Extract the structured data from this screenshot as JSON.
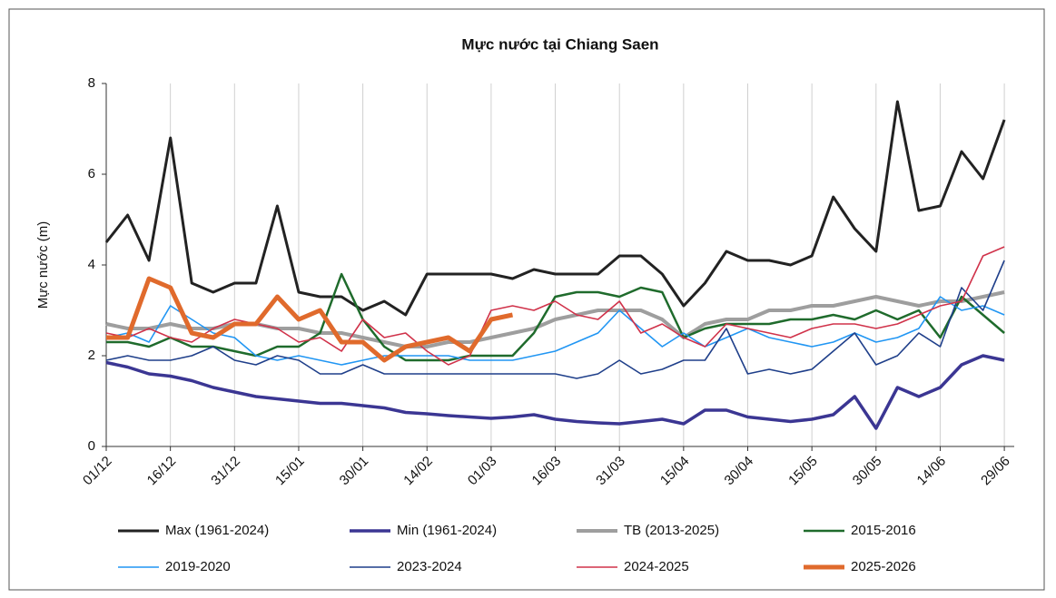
{
  "chart_data": {
    "type": "line",
    "title": "Mực nước tại Chiang Saen",
    "ylabel": "Mực nước (m)",
    "categories": [
      "01/12",
      null,
      null,
      "16/12",
      null,
      null,
      "31/12",
      null,
      null,
      "15/01",
      null,
      null,
      "30/01",
      null,
      null,
      "14/02",
      null,
      null,
      "01/03",
      null,
      null,
      "16/03",
      null,
      null,
      "31/03",
      null,
      null,
      "15/04",
      null,
      null,
      "30/04",
      null,
      null,
      "15/05",
      null,
      null,
      "30/05",
      null,
      null,
      "14/06",
      null,
      null,
      "29/06"
    ],
    "ylim": [
      0,
      8
    ],
    "yticks": [
      0,
      2,
      4,
      6,
      8
    ],
    "grid": true,
    "series": [
      {
        "name": "Max (1961-2024)",
        "color": "#222222",
        "values": [
          4.5,
          5.1,
          4.1,
          6.8,
          3.6,
          3.4,
          3.6,
          3.6,
          5.3,
          3.4,
          3.3,
          3.3,
          3.0,
          3.2,
          2.9,
          3.8,
          3.8,
          3.8,
          3.8,
          3.7,
          3.9,
          3.8,
          3.8,
          3.8,
          4.2,
          4.2,
          3.8,
          3.1,
          3.6,
          4.3,
          4.1,
          4.1,
          4.0,
          4.2,
          5.5,
          4.8,
          4.3,
          7.6,
          5.2,
          5.3,
          6.5,
          5.9,
          7.2
        ]
      },
      {
        "name": "Min (1961-2024)",
        "color": "#3b3693",
        "values": [
          1.85,
          1.75,
          1.6,
          1.55,
          1.45,
          1.3,
          1.2,
          1.1,
          1.05,
          1.0,
          0.95,
          0.95,
          0.9,
          0.85,
          0.75,
          0.72,
          0.68,
          0.65,
          0.62,
          0.65,
          0.7,
          0.6,
          0.55,
          0.52,
          0.5,
          0.55,
          0.6,
          0.5,
          0.8,
          0.8,
          0.65,
          0.6,
          0.55,
          0.6,
          0.7,
          1.1,
          0.4,
          1.3,
          1.1,
          1.3,
          1.8,
          2.0,
          1.9
        ]
      },
      {
        "name": "TB (2013-2025)",
        "color": "#9e9e9e",
        "values": [
          2.7,
          2.6,
          2.6,
          2.7,
          2.6,
          2.6,
          2.7,
          2.7,
          2.6,
          2.6,
          2.5,
          2.5,
          2.4,
          2.3,
          2.2,
          2.2,
          2.3,
          2.3,
          2.4,
          2.5,
          2.6,
          2.8,
          2.9,
          3.0,
          3.0,
          3.0,
          2.8,
          2.4,
          2.7,
          2.8,
          2.8,
          3.0,
          3.0,
          3.1,
          3.1,
          3.2,
          3.3,
          3.2,
          3.1,
          3.2,
          3.2,
          3.3,
          3.4
        ]
      },
      {
        "name": "2015-2016",
        "color": "#1f6b2c",
        "values": [
          2.3,
          2.3,
          2.2,
          2.4,
          2.2,
          2.2,
          2.1,
          2.0,
          2.2,
          2.2,
          2.5,
          3.8,
          2.8,
          2.2,
          1.9,
          1.9,
          1.9,
          2.0,
          2.0,
          2.0,
          2.5,
          3.3,
          3.4,
          3.4,
          3.3,
          3.5,
          3.4,
          2.4,
          2.6,
          2.7,
          2.7,
          2.7,
          2.8,
          2.8,
          2.9,
          2.8,
          3.0,
          2.8,
          3.0,
          2.4,
          3.3,
          2.9,
          2.5
        ]
      },
      {
        "name": "2019-2020",
        "color": "#2196f3",
        "values": [
          2.4,
          2.5,
          2.3,
          3.1,
          2.8,
          2.5,
          2.4,
          2.0,
          1.9,
          2.0,
          1.9,
          1.8,
          1.9,
          2.0,
          2.0,
          2.0,
          2.0,
          1.9,
          1.9,
          1.9,
          2.0,
          2.1,
          2.3,
          2.5,
          3.0,
          2.6,
          2.2,
          2.5,
          2.2,
          2.4,
          2.6,
          2.4,
          2.3,
          2.2,
          2.3,
          2.5,
          2.3,
          2.4,
          2.6,
          3.3,
          3.0,
          3.1,
          2.9
        ]
      },
      {
        "name": "2023-2024",
        "color": "#1f3f8a",
        "values": [
          1.9,
          2.0,
          1.9,
          1.9,
          2.0,
          2.2,
          1.9,
          1.8,
          2.0,
          1.9,
          1.6,
          1.6,
          1.8,
          1.6,
          1.6,
          1.6,
          1.6,
          1.6,
          1.6,
          1.6,
          1.6,
          1.6,
          1.5,
          1.6,
          1.9,
          1.6,
          1.7,
          1.9,
          1.9,
          2.6,
          1.6,
          1.7,
          1.6,
          1.7,
          2.1,
          2.5,
          1.8,
          2.0,
          2.5,
          2.2,
          3.5,
          3.0,
          4.1
        ]
      },
      {
        "name": "2024-2025",
        "color": "#d0324a",
        "values": [
          2.5,
          2.4,
          2.6,
          2.4,
          2.3,
          2.6,
          2.8,
          2.7,
          2.6,
          2.3,
          2.4,
          2.1,
          2.8,
          2.4,
          2.5,
          2.1,
          1.8,
          2.0,
          3.0,
          3.1,
          3.0,
          3.2,
          2.9,
          2.8,
          3.2,
          2.5,
          2.7,
          2.4,
          2.2,
          2.7,
          2.6,
          2.5,
          2.4,
          2.6,
          2.7,
          2.7,
          2.6,
          2.7,
          2.9,
          3.1,
          3.2,
          4.2,
          4.4
        ]
      },
      {
        "name": "2025-2026",
        "color": "#e06a2c",
        "values": [
          2.4,
          2.4,
          3.7,
          3.5,
          2.5,
          2.4,
          2.7,
          2.7,
          3.3,
          2.8,
          3.0,
          2.3,
          2.3,
          1.9,
          2.2,
          2.3,
          2.4,
          2.1,
          2.8,
          2.9,
          null,
          null,
          null,
          null,
          null,
          null,
          null,
          null,
          null,
          null,
          null,
          null,
          null,
          null,
          null,
          null,
          null,
          null,
          null,
          null,
          null,
          null,
          null
        ]
      }
    ]
  }
}
